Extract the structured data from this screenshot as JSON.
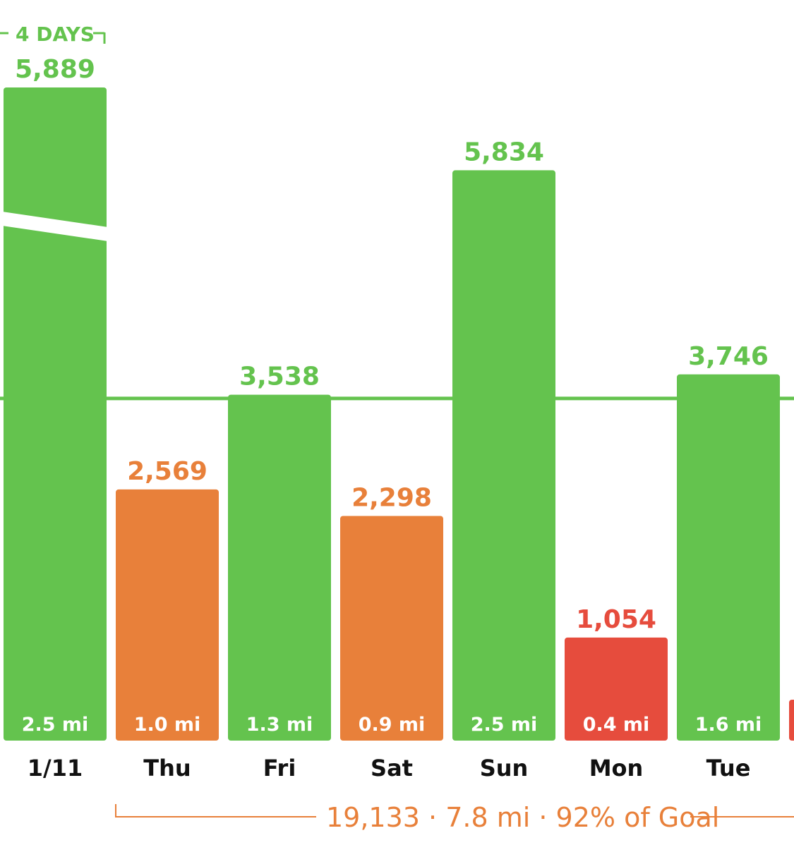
{
  "colors": {
    "green": "#64C34E",
    "orange": "#E8803A",
    "red": "#E64C3D",
    "axis_text": "#111111",
    "background": "#ffffff"
  },
  "streak": {
    "label": "4 DAYS",
    "color": "#64C34E"
  },
  "summary": {
    "text": "19,133 · 7.8 mi · 92% of Goal",
    "color": "#E8803A"
  },
  "chart_data": {
    "type": "bar",
    "goal": 3500,
    "ylim": [
      0,
      6000
    ],
    "categories": [
      "1/11",
      "Thu",
      "Fri",
      "Sat",
      "Sun",
      "Mon",
      "Tue",
      ""
    ],
    "series": [
      {
        "values": [
          5889,
          2569,
          3538,
          2298,
          5834,
          1054,
          3746,
          null
        ],
        "value_labels": [
          "5,889",
          "2,569",
          "3,538",
          "2,298",
          "5,834",
          "1,054",
          "3,746",
          ""
        ],
        "distances": [
          "2.5 mi",
          "1.0 mi",
          "1.3 mi",
          "0.9 mi",
          "2.5 mi",
          "0.4 mi",
          "1.6 mi",
          ""
        ],
        "statuses": [
          "green",
          "orange",
          "green",
          "orange",
          "green",
          "red",
          "green",
          "red"
        ]
      }
    ],
    "title": "",
    "xlabel": "",
    "ylabel": "",
    "grid": false,
    "broken_axis_bars": [
      "1/11"
    ]
  }
}
